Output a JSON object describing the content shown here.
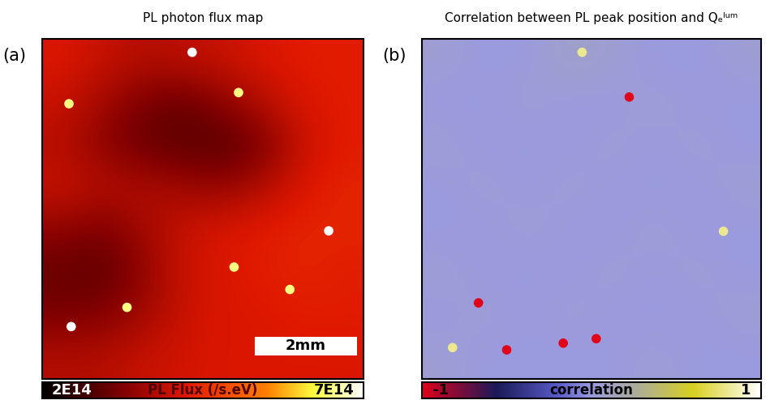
{
  "chart_data": [
    {
      "type": "heatmap",
      "panel_label": "(a)",
      "title": "PL photon flux map",
      "xlim": [
        0,
        7.2
      ],
      "ylim": [
        7.6,
        0
      ],
      "tick_labels": false,
      "cells": [
        [
          420000000000000.0,
          400000000000000.0,
          380000000000000.0,
          390000000000000.0,
          400000000000000.0,
          420000000000000.0,
          430000000000000.0,
          430000000000000.0
        ],
        [
          400000000000000.0,
          360000000000000.0,
          320000000000000.0,
          300000000000000.0,
          340000000000000.0,
          380000000000000.0,
          420000000000000.0,
          430000000000000.0
        ],
        [
          380000000000000.0,
          340000000000000.0,
          300000000000000.0,
          290000000000000.0,
          280000000000000.0,
          320000000000000.0,
          400000000000000.0,
          430000000000000.0
        ],
        [
          400000000000000.0,
          380000000000000.0,
          380000000000000.0,
          360000000000000.0,
          350000000000000.0,
          380000000000000.0,
          420000000000000.0,
          440000000000000.0
        ],
        [
          340000000000000.0,
          320000000000000.0,
          360000000000000.0,
          400000000000000.0,
          420000000000000.0,
          430000000000000.0,
          440000000000000.0,
          440000000000000.0
        ],
        [
          300000000000000.0,
          290000000000000.0,
          340000000000000.0,
          400000000000000.0,
          420000000000000.0,
          430000000000000.0,
          440000000000000.0,
          430000000000000.0
        ],
        [
          320000000000000.0,
          330000000000000.0,
          360000000000000.0,
          400000000000000.0,
          420000000000000.0,
          420000000000000.0,
          430000000000000.0,
          430000000000000.0
        ],
        [
          380000000000000.0,
          380000000000000.0,
          400000000000000.0,
          410000000000000.0,
          420000000000000.0,
          420000000000000.0,
          420000000000000.0,
          420000000000000.0
        ]
      ],
      "spots": [
        {
          "x": 3.36,
          "y": 0.3,
          "value": 700000000000000.0
        },
        {
          "x": 6.42,
          "y": 4.29,
          "value": 700000000000000.0
        },
        {
          "x": 0.65,
          "y": 6.43,
          "value": 700000000000000.0
        },
        {
          "x": 4.4,
          "y": 1.2,
          "value": 650000000000000.0
        },
        {
          "x": 5.55,
          "y": 5.6,
          "value": 650000000000000.0
        },
        {
          "x": 1.9,
          "y": 6.0,
          "value": 650000000000000.0
        },
        {
          "x": 0.6,
          "y": 1.45,
          "value": 650000000000000.0
        },
        {
          "x": 4.3,
          "y": 5.1,
          "value": 650000000000000.0
        }
      ],
      "scale_bar": {
        "label": "2mm",
        "length": 2
      },
      "colorbar": {
        "label": "PL Flux (/s.eV)",
        "range": [
          200000000000000.0,
          700000000000000.0
        ],
        "ticks": [
          {
            "value": 200000000000000.0,
            "label": "2E14"
          },
          {
            "value": 700000000000000.0,
            "label": "7E14"
          }
        ]
      }
    },
    {
      "type": "heatmap",
      "panel_label": "(b)",
      "title": "Correlation between PL peak position and Qₑˡᵘᵐ",
      "xlim": [
        0,
        7.2
      ],
      "ylim": [
        7.6,
        0
      ],
      "tick_labels": false,
      "cells": [
        [
          0.05,
          0.0,
          0.0,
          0.1,
          0.05,
          0.0,
          0.0,
          0.05
        ],
        [
          0.0,
          0.0,
          0.05,
          0.0,
          0.0,
          0.05,
          0.0,
          0.0
        ],
        [
          0.05,
          0.0,
          0.0,
          0.0,
          0.05,
          0.0,
          0.05,
          0.0
        ],
        [
          0.0,
          0.05,
          0.0,
          0.05,
          0.0,
          0.0,
          0.0,
          0.05
        ],
        [
          0.0,
          0.0,
          0.05,
          0.0,
          0.0,
          0.05,
          0.0,
          0.0
        ],
        [
          0.05,
          0.0,
          0.0,
          0.0,
          0.05,
          0.0,
          0.05,
          0.0
        ],
        [
          0.0,
          0.05,
          0.0,
          0.05,
          0.0,
          0.0,
          0.0,
          0.05
        ],
        [
          0.05,
          0.0,
          0.0,
          0.0,
          0.0,
          0.05,
          0.0,
          0.0
        ]
      ],
      "spots": [
        {
          "x": 3.4,
          "y": 0.3,
          "value": 0.8
        },
        {
          "x": 6.4,
          "y": 4.3,
          "value": 0.8
        },
        {
          "x": 0.65,
          "y": 6.9,
          "value": 0.8
        },
        {
          "x": 4.4,
          "y": 1.3,
          "value": -1
        },
        {
          "x": 1.8,
          "y": 6.95,
          "value": -1
        },
        {
          "x": 3.0,
          "y": 6.8,
          "value": -1
        },
        {
          "x": 3.7,
          "y": 6.7,
          "value": -1
        },
        {
          "x": 1.2,
          "y": 5.9,
          "value": -1
        }
      ],
      "colorbar": {
        "label": "correlation",
        "range": [
          -1,
          1
        ],
        "ticks": [
          -1,
          1
        ]
      }
    }
  ]
}
